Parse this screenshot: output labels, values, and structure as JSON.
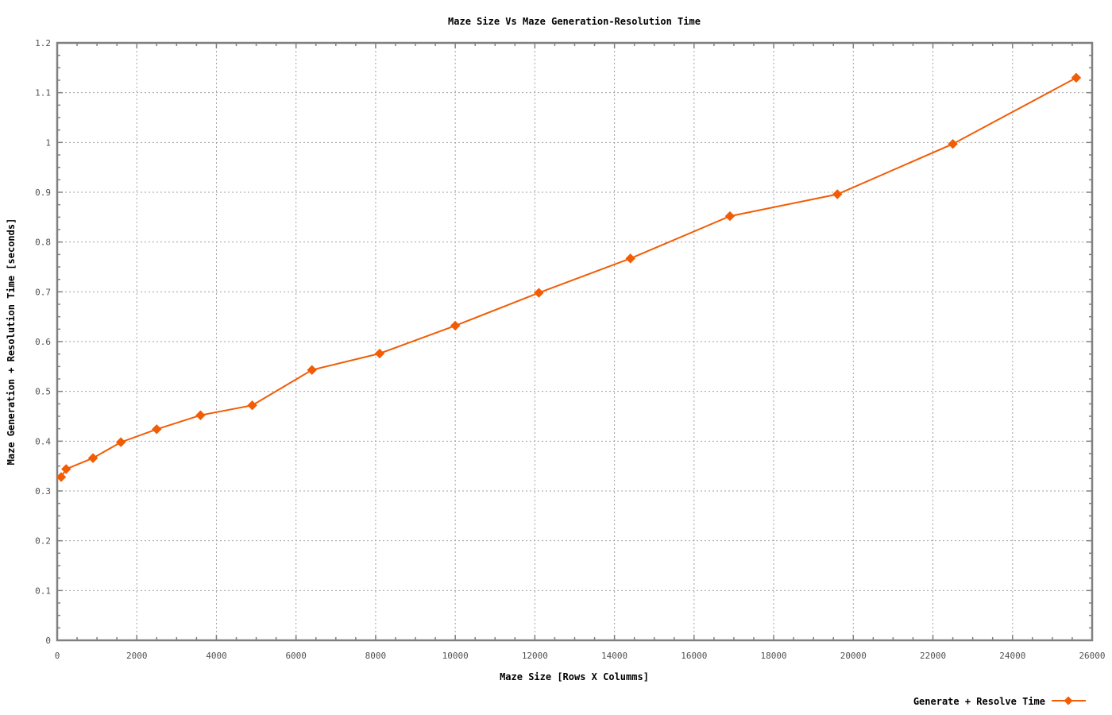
{
  "colors": {
    "series": "#f25c05",
    "axis": "#808080",
    "grid": "#a0a0a0",
    "text": "#000000",
    "tick_text": "#505050"
  },
  "chart_data": {
    "type": "line",
    "title": "Maze Size Vs Maze Generation-Resolution Time",
    "xlabel": "Maze Size [Rows X Columms]",
    "ylabel": "Maze Generation + Resolution Time [seconds]",
    "xlim": [
      0,
      26000
    ],
    "ylim": [
      0,
      1.2
    ],
    "xticks": [
      "0",
      "2000",
      "4000",
      "6000",
      "8000",
      "10000",
      "12000",
      "14000",
      "16000",
      "18000",
      "20000",
      "22000",
      "24000",
      "26000"
    ],
    "yticks": [
      "0",
      "0.1",
      "0.2",
      "0.3",
      "0.4",
      "0.5",
      "0.6",
      "0.7",
      "0.8",
      "0.9",
      "1",
      "1.1",
      "1.2"
    ],
    "grid": true,
    "legend_position": "bottom-right",
    "series": [
      {
        "name": "Generate + Resolve Time",
        "marker": "diamond",
        "x": [
          100,
          225,
          900,
          1600,
          2500,
          3600,
          4900,
          6400,
          8100,
          10000,
          12100,
          14400,
          16900,
          19600,
          22500,
          25600
        ],
        "y": [
          0.328,
          0.344,
          0.366,
          0.398,
          0.424,
          0.452,
          0.472,
          0.543,
          0.576,
          0.632,
          0.698,
          0.767,
          0.852,
          0.896,
          0.997,
          1.13
        ]
      }
    ]
  }
}
